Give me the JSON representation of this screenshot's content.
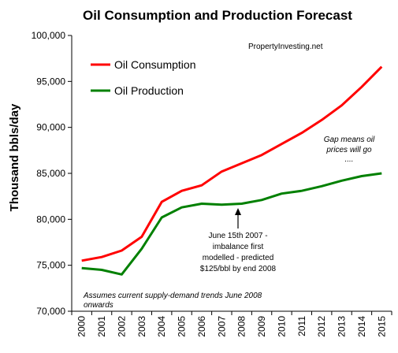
{
  "chart_data": {
    "type": "line",
    "title": "Oil Consumption and Production Forecast",
    "xlabel": "",
    "ylabel": "Thousand bbls/day",
    "source_label": "PropertyInvesting.net",
    "categories": [
      "2000",
      "2001",
      "2002",
      "2003",
      "2004",
      "2005",
      "2006",
      "2007",
      "2008",
      "2009",
      "2010",
      "2011",
      "2012",
      "2013",
      "2014",
      "2015"
    ],
    "ylim": [
      70000,
      100000
    ],
    "y_ticks": [
      "70,000",
      "75,000",
      "80,000",
      "85,000",
      "90,000",
      "95,000",
      "100,000"
    ],
    "y_tick_values": [
      70000,
      75000,
      80000,
      85000,
      90000,
      95000,
      100000
    ],
    "grid": false,
    "legend_position": "top-left",
    "series": [
      {
        "name": "Oil Consumption",
        "color": "#ff0000",
        "values": [
          75500,
          75900,
          76600,
          78100,
          81900,
          83100,
          83700,
          85200,
          86100,
          87000,
          88200,
          89400,
          90800,
          92400,
          94400,
          96600
        ]
      },
      {
        "name": "Oil Production",
        "color": "#008000",
        "values": [
          74700,
          74500,
          74000,
          76800,
          80200,
          81300,
          81700,
          81600,
          81700,
          82100,
          82800,
          83100,
          83600,
          84200,
          84700,
          85000
        ]
      }
    ],
    "annotations": {
      "gap_lines": [
        "Gap means oil",
        "prices will go",
        "...."
      ],
      "imbalance_lines": [
        "June 15th 2007 -",
        "imbalance first",
        "modelled - predicted",
        "$125/bbl by end 2008"
      ],
      "assumption_lines": [
        "Assumes current supply-demand trends June 2008",
        "onwards"
      ]
    }
  }
}
